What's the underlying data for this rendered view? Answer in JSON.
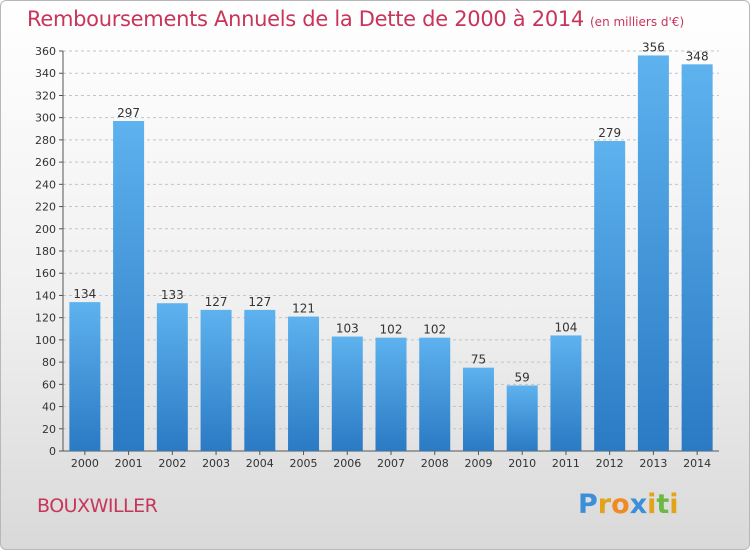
{
  "title": "Remboursements Annuels de la Dette de 2000 à 2014",
  "title_unit": "(en milliers d'€)",
  "city": "BOUXWILLER",
  "logo": {
    "letters": [
      "P",
      "r",
      "o",
      "x",
      "i",
      "t",
      "i"
    ],
    "colors": [
      "#3a8fd8",
      "#e2a21a",
      "#f08a24",
      "#3a8fd8",
      "#e2a21a",
      "#6bb843",
      "#e2a21a"
    ]
  },
  "colors": {
    "bar_light": "#5eb2ee",
    "bar_dark": "#2a7ac4",
    "grid": "#c4c4c4",
    "axis": "#555555",
    "text": "#333333"
  },
  "chart_data": {
    "type": "bar",
    "categories": [
      "2000",
      "2001",
      "2002",
      "2003",
      "2004",
      "2005",
      "2006",
      "2007",
      "2008",
      "2009",
      "2010",
      "2011",
      "2012",
      "2013",
      "2014"
    ],
    "values": [
      134,
      297,
      133,
      127,
      127,
      121,
      103,
      102,
      102,
      75,
      59,
      104,
      279,
      356,
      348
    ],
    "title": "Remboursements Annuels de la Dette de 2000 à 2014",
    "ylim": [
      0,
      360
    ],
    "ytick_step": 20,
    "grid": true,
    "data_labels": true
  }
}
